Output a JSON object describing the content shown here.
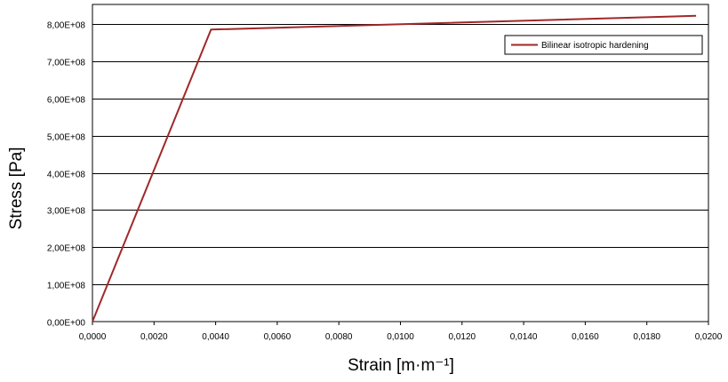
{
  "chart_data": {
    "type": "line",
    "title": "",
    "xlabel": "Strain [m·m⁻¹]",
    "ylabel": "Stress  [Pa]",
    "xlim": [
      0,
      0.02
    ],
    "ylim": [
      0,
      850000000
    ],
    "x_ticks": [
      0,
      0.002,
      0.004,
      0.006,
      0.008,
      0.01,
      0.012,
      0.014,
      0.016,
      0.018,
      0.02
    ],
    "x_tick_labels": [
      "0,0000",
      "0,0020",
      "0,0040",
      "0,0060",
      "0,0080",
      "0,0100",
      "0,0120",
      "0,0140",
      "0,0160",
      "0,0180",
      "0,0200"
    ],
    "y_ticks": [
      0,
      100000000,
      200000000,
      300000000,
      400000000,
      500000000,
      600000000,
      700000000,
      800000000
    ],
    "y_tick_labels": [
      "0,00E+00",
      "1,00E+08",
      "2,00E+08",
      "3,00E+08",
      "4,00E+08",
      "5,00E+08",
      "6,00E+08",
      "7,00E+08",
      "8,00E+08"
    ],
    "grid": {
      "horizontal": true,
      "vertical": false
    },
    "legend_position": "top-right",
    "series": [
      {
        "name": "Bilinear isotropic hardening",
        "color": "#a0282a",
        "x": [
          0,
          0.00385,
          0.0196
        ],
        "y": [
          0,
          785000000,
          822000000
        ]
      }
    ]
  }
}
